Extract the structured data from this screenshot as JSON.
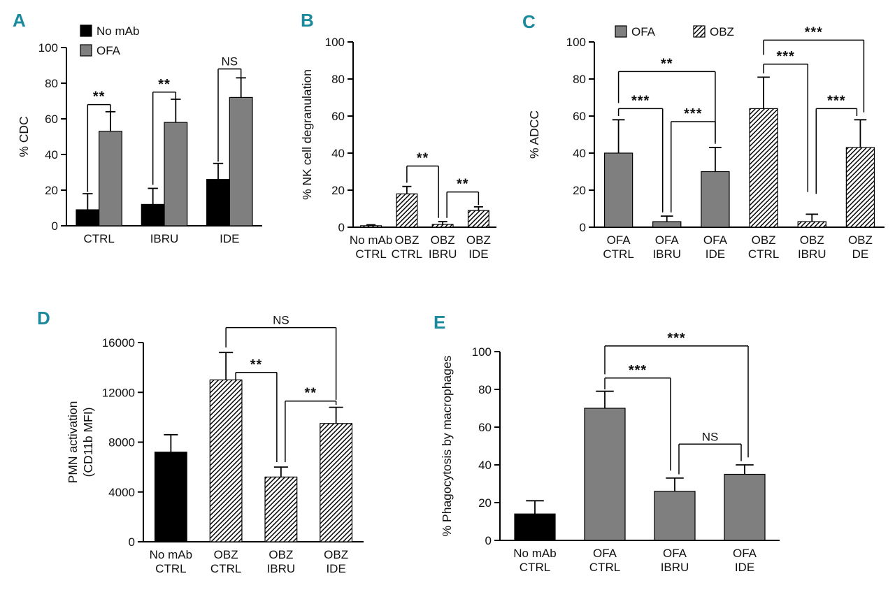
{
  "figure": {
    "background": "#ffffff",
    "panel_letter_color": "#1a8a9c"
  },
  "colors": {
    "black_fill": "#000000",
    "gray_fill": "#7f7f7f",
    "hatch_line": "#000000",
    "hatch_bg": "#ffffff",
    "axis": "#000000"
  },
  "chart_data": [
    {
      "panel": "A",
      "type": "bar",
      "ylabel": "% CDC",
      "ylim": [
        0,
        100
      ],
      "yticks": [
        0,
        20,
        40,
        60,
        80,
        100
      ],
      "categories": [
        "CTRL",
        "IBRU",
        "IDE"
      ],
      "series": [
        {
          "name": "No mAb",
          "style": "black",
          "values": [
            9,
            12,
            26
          ],
          "errors": [
            9,
            9,
            9
          ]
        },
        {
          "name": "OFA",
          "style": "gray",
          "values": [
            53,
            58,
            72
          ],
          "errors": [
            11,
            13,
            11
          ]
        }
      ],
      "legend": [
        {
          "label": "No mAb",
          "style": "black"
        },
        {
          "label": "OFA",
          "style": "gray"
        }
      ],
      "significance": [
        {
          "x1": 0,
          "x2": 1,
          "y": 68,
          "drop1": 49,
          "drop2": 4,
          "label": "**"
        },
        {
          "x1": 2,
          "x2": 3,
          "y": 75,
          "drop1": 52,
          "drop2": 4,
          "label": "**"
        },
        {
          "x1": 4,
          "x2": 5,
          "y": 88,
          "drop1": 52,
          "drop2": 5,
          "label": "NS"
        }
      ]
    },
    {
      "panel": "B",
      "type": "bar",
      "ylabel": "% NK cell degranulation",
      "ylim": [
        0,
        100
      ],
      "yticks": [
        0,
        20,
        40,
        60,
        80,
        100
      ],
      "categories": [
        "No mAb\nCTRL",
        "OBZ\nCTRL",
        "OBZ\nIBRU",
        "OBZ\nIDE"
      ],
      "series": [
        {
          "name": "OBZ",
          "styles": [
            "hatch",
            "hatch",
            "hatch",
            "hatch"
          ],
          "values": [
            0.8,
            18,
            1.5,
            9
          ],
          "errors": [
            0.5,
            4,
            1.5,
            2
          ]
        }
      ],
      "significance": [
        {
          "x1": 1,
          "x2": 2,
          "y": 33,
          "drop1": 9,
          "drop2": 28,
          "label": "**",
          "xoff2": -6
        },
        {
          "x1": 2,
          "x2": 3,
          "y": 19,
          "drop1": 14,
          "drop2": 7,
          "label": "**",
          "xoff1": 6
        }
      ]
    },
    {
      "panel": "C",
      "type": "bar",
      "ylabel": "% ADCC",
      "ylim": [
        0,
        100
      ],
      "yticks": [
        0,
        20,
        40,
        60,
        80,
        100
      ],
      "categories": [
        "OFA\nCTRL",
        "OFA\nIBRU",
        "OFA\nIDE",
        "OBZ\nCTRL",
        "OBZ\nIBRU",
        "OBZ\nDE"
      ],
      "series": [
        {
          "name": "",
          "styles": [
            "gray",
            "gray",
            "gray",
            "hatch",
            "hatch",
            "hatch"
          ],
          "values": [
            40,
            3,
            30,
            64,
            3,
            43
          ],
          "errors": [
            18,
            3,
            13,
            17,
            4,
            15
          ]
        }
      ],
      "legend": [
        {
          "label": "OFA",
          "style": "gray"
        },
        {
          "label": "OBZ",
          "style": "hatch"
        }
      ],
      "significance": [
        {
          "x1": 0,
          "x2": 1,
          "y": 64,
          "drop1": 4,
          "drop2": 56,
          "label": "***",
          "xoff2": -6
        },
        {
          "x1": 0,
          "x2": 2,
          "y": 84,
          "drop1": 17,
          "drop2": 39,
          "label": "**"
        },
        {
          "x1": 1,
          "x2": 2,
          "y": 57,
          "drop1": 49,
          "drop2": 11,
          "label": "***",
          "xoff1": 6
        },
        {
          "x1": 3,
          "x2": 5,
          "y": 101,
          "drop1": 8,
          "drop2": 39,
          "label": "***",
          "xoff2": 5
        },
        {
          "x1": 3,
          "x2": 4,
          "y": 88,
          "drop1": 5,
          "drop2": 69,
          "label": "***",
          "xoff2": -6
        },
        {
          "x1": 4,
          "x2": 5,
          "y": 64,
          "drop1": 46,
          "drop2": 4,
          "label": "***",
          "xoff1": 6,
          "xoff2": -5
        }
      ]
    },
    {
      "panel": "D",
      "type": "bar",
      "ylabel": "PMN activation\n(CD11b MFI)",
      "ylim": [
        0,
        16000
      ],
      "yticks": [
        0,
        4000,
        8000,
        12000,
        16000
      ],
      "categories": [
        "No mAb\nCTRL",
        "OBZ\nCTRL",
        "OBZ\nIBRU",
        "OBZ\nIDE"
      ],
      "series": [
        {
          "name": "",
          "styles": [
            "black",
            "hatch",
            "hatch",
            "hatch"
          ],
          "values": [
            7200,
            13000,
            5200,
            9500
          ],
          "errors": [
            1400,
            2200,
            800,
            1300
          ]
        }
      ],
      "significance": [
        {
          "x1": 1,
          "x2": 3,
          "y": 17200,
          "drop1": 1600,
          "drop2": 5800,
          "label": "NS"
        },
        {
          "x1": 1,
          "x2": 2,
          "y": 13600,
          "drop1": 700,
          "drop2": 7200,
          "label": "**",
          "xoff1": 14,
          "xoff2": -6
        },
        {
          "x1": 2,
          "x2": 3,
          "y": 11300,
          "drop1": 4900,
          "drop2": 300,
          "label": "**",
          "xoff1": 6
        }
      ]
    },
    {
      "panel": "E",
      "type": "bar",
      "ylabel": "% Phagocytosis by macrophages",
      "ylim": [
        0,
        100
      ],
      "yticks": [
        0,
        20,
        40,
        60,
        80,
        100
      ],
      "categories": [
        "No mAb\nCTRL",
        "OFA\nCTRL",
        "OFA\nIBRU",
        "OFA\nIDE"
      ],
      "series": [
        {
          "name": "",
          "styles": [
            "black",
            "gray",
            "gray",
            "gray"
          ],
          "values": [
            14,
            70,
            26,
            35
          ],
          "errors": [
            7,
            9,
            7,
            5
          ]
        }
      ],
      "significance": [
        {
          "x1": 1,
          "x2": 3,
          "y": 103,
          "drop1": 15,
          "drop2": 59,
          "label": "***",
          "xoff2": 5
        },
        {
          "x1": 1,
          "x2": 2,
          "y": 86,
          "drop1": 6,
          "drop2": 49,
          "label": "***",
          "xoff2": -6
        },
        {
          "x1": 2,
          "x2": 3,
          "y": 51,
          "drop1": 16,
          "drop2": 9,
          "label": "NS",
          "xoff1": 6,
          "xoff2": -5
        }
      ]
    }
  ]
}
